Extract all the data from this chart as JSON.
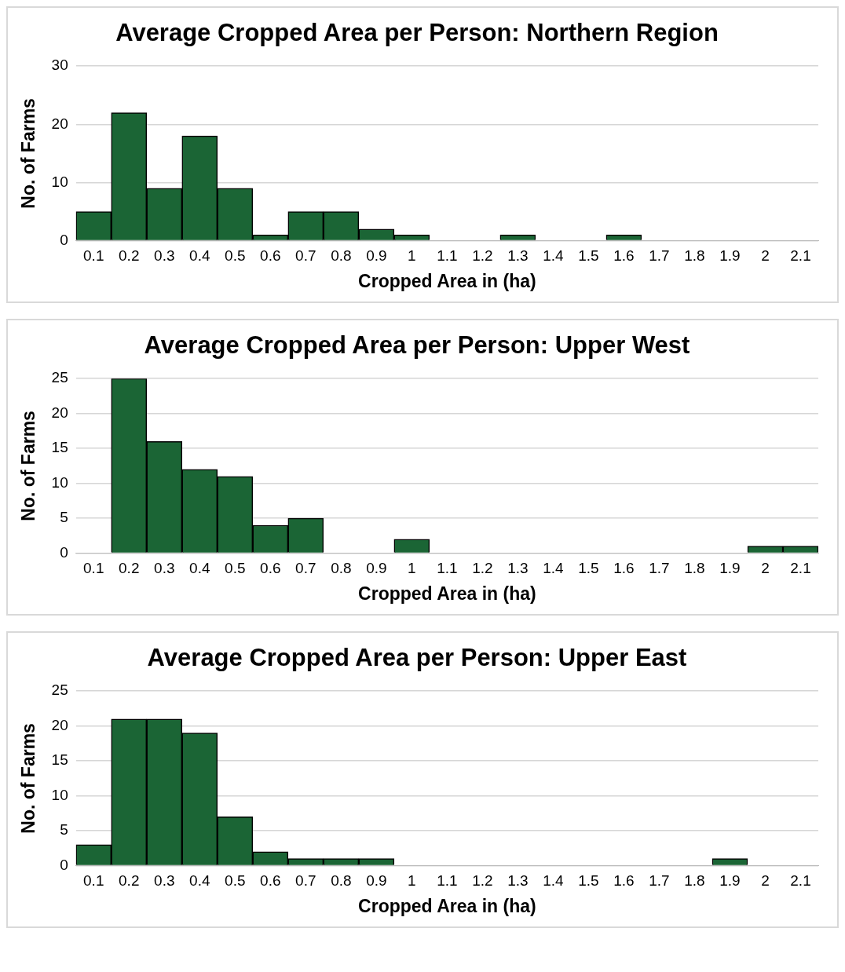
{
  "chart_data": [
    {
      "type": "bar",
      "title": "Average Cropped Area per Person: Northern Region",
      "xlabel": "Cropped Area in (ha)",
      "ylabel": "No. of Farms",
      "categories": [
        "0.1",
        "0.2",
        "0.3",
        "0.4",
        "0.5",
        "0.6",
        "0.7",
        "0.8",
        "0.9",
        "1",
        "1.1",
        "1.2",
        "1.3",
        "1.4",
        "1.5",
        "1.6",
        "1.7",
        "1.8",
        "1.9",
        "2",
        "2.1"
      ],
      "values": [
        5,
        22,
        9,
        18,
        9,
        1,
        5,
        5,
        2,
        1,
        0,
        0,
        1,
        0,
        0,
        1,
        0,
        0,
        0,
        0,
        0
      ],
      "color": "#1b6535",
      "ylim": [
        0,
        30
      ],
      "yticks": [
        0,
        10,
        20,
        30
      ],
      "grid": "y"
    },
    {
      "type": "bar",
      "title": "Average Cropped Area per Person: Upper West",
      "xlabel": "Cropped Area in (ha)",
      "ylabel": "No. of Farms",
      "categories": [
        "0.1",
        "0.2",
        "0.3",
        "0.4",
        "0.5",
        "0.6",
        "0.7",
        "0.8",
        "0.9",
        "1",
        "1.1",
        "1.2",
        "1.3",
        "1.4",
        "1.5",
        "1.6",
        "1.7",
        "1.8",
        "1.9",
        "2",
        "2.1"
      ],
      "values": [
        0,
        25,
        16,
        12,
        11,
        4,
        5,
        0,
        0,
        2,
        0,
        0,
        0,
        0,
        0,
        0,
        0,
        0,
        0,
        1,
        1
      ],
      "color": "#1b6535",
      "ylim": [
        0,
        25
      ],
      "yticks": [
        0,
        5,
        10,
        15,
        20,
        25
      ],
      "grid": "y"
    },
    {
      "type": "bar",
      "title": "Average Cropped Area per Person: Upper East",
      "xlabel": "Cropped Area in (ha)",
      "ylabel": "No. of Farms",
      "categories": [
        "0.1",
        "0.2",
        "0.3",
        "0.4",
        "0.5",
        "0.6",
        "0.7",
        "0.8",
        "0.9",
        "1",
        "1.1",
        "1.2",
        "1.3",
        "1.4",
        "1.5",
        "1.6",
        "1.7",
        "1.8",
        "1.9",
        "2",
        "2.1"
      ],
      "values": [
        3,
        21,
        21,
        19,
        7,
        2,
        1,
        1,
        1,
        0,
        0,
        0,
        0,
        0,
        0,
        0,
        0,
        0,
        1,
        0,
        0
      ],
      "color": "#1b6535",
      "ylim": [
        0,
        25
      ],
      "yticks": [
        0,
        5,
        10,
        15,
        20,
        25
      ],
      "grid": "y"
    }
  ]
}
